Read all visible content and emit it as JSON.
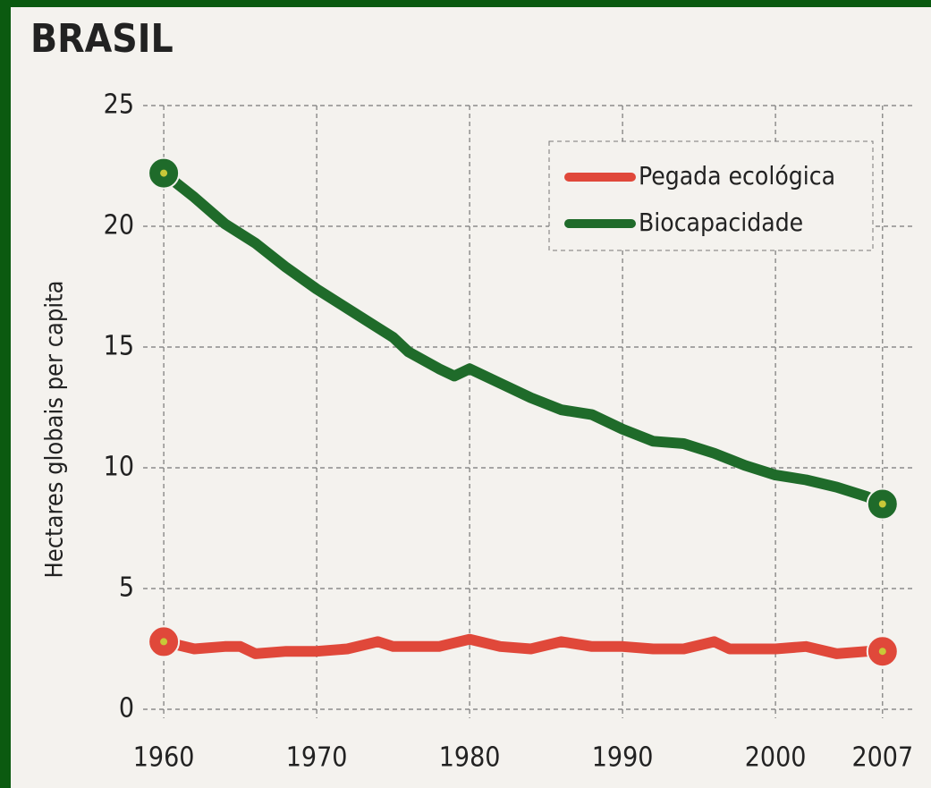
{
  "chart_data": {
    "type": "line",
    "title": "BRASIL",
    "y_label": "Hectares globais per capita",
    "xlim": [
      1959,
      2009
    ],
    "xticks": [
      1960,
      1970,
      1980,
      1990,
      2000,
      2007
    ],
    "ylim": [
      0,
      25
    ],
    "yticks": [
      0,
      5,
      10,
      15,
      20,
      25
    ],
    "grid": true,
    "legend": "upper right",
    "series": [
      {
        "name": "Pegada ecológica",
        "color": "#e0483a",
        "x": [
          1960,
          1962,
          1964,
          1965,
          1966,
          1968,
          1970,
          1972,
          1974,
          1975,
          1978,
          1980,
          1982,
          1984,
          1986,
          1988,
          1990,
          1992,
          1994,
          1996,
          1997,
          2000,
          2002,
          2004,
          2006,
          2007
        ],
        "values": [
          2.8,
          2.5,
          2.6,
          2.6,
          2.3,
          2.4,
          2.4,
          2.5,
          2.8,
          2.6,
          2.6,
          2.9,
          2.6,
          2.5,
          2.8,
          2.6,
          2.6,
          2.5,
          2.5,
          2.8,
          2.5,
          2.5,
          2.6,
          2.3,
          2.4,
          2.4
        ]
      },
      {
        "name": "Biocapacidade",
        "color": "#1f6b2a",
        "x": [
          1960,
          1962,
          1964,
          1966,
          1968,
          1970,
          1972,
          1974,
          1975,
          1976,
          1978,
          1979,
          1980,
          1982,
          1984,
          1986,
          1988,
          1990,
          1992,
          1994,
          1996,
          1998,
          2000,
          2002,
          2004,
          2006,
          2007
        ],
        "values": [
          22.2,
          21.2,
          20.1,
          19.3,
          18.3,
          17.4,
          16.6,
          15.8,
          15.4,
          14.8,
          14.1,
          13.8,
          14.1,
          13.5,
          12.9,
          12.4,
          12.2,
          11.6,
          11.1,
          11.0,
          10.6,
          10.1,
          9.7,
          9.5,
          9.2,
          8.8,
          8.5
        ]
      }
    ]
  }
}
